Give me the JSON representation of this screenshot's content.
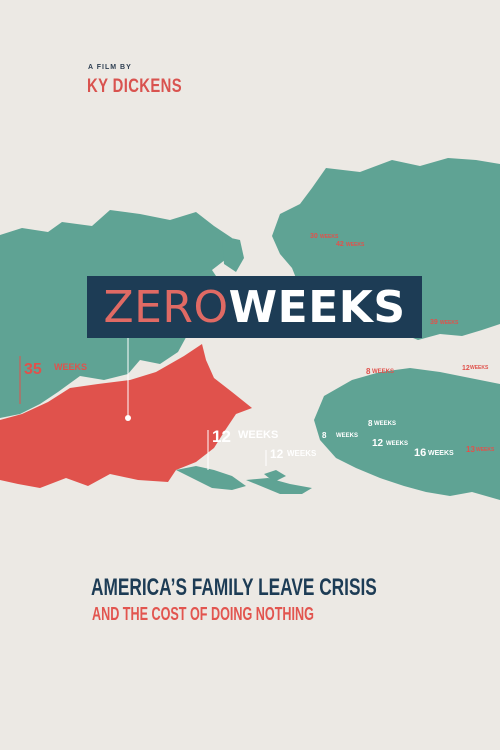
{
  "credit": {
    "prefix": "A FILM BY",
    "director": "KY DICKENS"
  },
  "title": {
    "part1": "ZERO",
    "part2": "WEEKS"
  },
  "tagline": "AMERICA’S FAMILY LEAVE CRISIS",
  "subtagline": "AND THE COST OF DOING NOTHING",
  "map_labels": {
    "canada_num": "35",
    "canada_unit": "WEEKS",
    "uk_num": "12",
    "uk_unit": "WEEKS",
    "iceland_num": "12",
    "iceland_unit": "WEEKS",
    "africa_num": "8",
    "africa_unit": "WEEKS",
    "europe_a_num": "30",
    "europe_a_unit": "WEEKS",
    "europe_b_num": "42",
    "europe_b_unit": "WEEKS",
    "europe_c_num": "39",
    "europe_c_unit": "WEEKS",
    "r1_num": "8",
    "r1_unit": "WEEKS",
    "r2_num": "12",
    "r2_unit": "WEEKS",
    "r3_num": "16",
    "r3_unit": "WEEKS",
    "r4_num": "13",
    "r4_unit": "WEEKS",
    "r5_num": "8",
    "r5_unit": "WEEKS",
    "r6_num": "12",
    "r6_unit": "WEEKS"
  },
  "colors": {
    "land": "#5fa394",
    "usa": "#e0524c",
    "navy": "#1d3c55",
    "paper": "#ece9e4"
  }
}
